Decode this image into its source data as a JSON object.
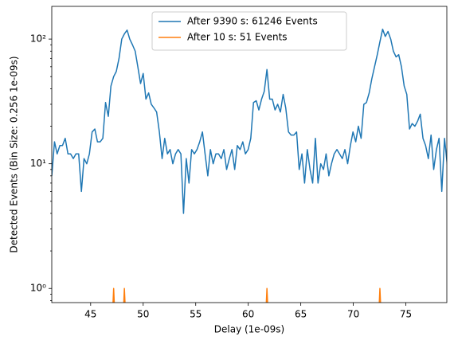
{
  "chart_data": {
    "type": "line",
    "xlabel": "Delay (1e-09s)",
    "ylabel": "Detected Events (Bin Size: 0.256 1e-09s)",
    "log_y": true,
    "legend": "upper center",
    "xlim": [
      41.3,
      78.9
    ],
    "ylim": [
      0.77,
      183
    ],
    "xticks": [
      45,
      50,
      55,
      60,
      65,
      70,
      75
    ],
    "yticks": [
      {
        "value": 1,
        "label": "10⁰"
      },
      {
        "value": 10,
        "label": "10¹"
      },
      {
        "value": 100,
        "label": "10²"
      }
    ],
    "yminorticks": [
      0.8,
      0.9,
      2,
      3,
      4,
      5,
      6,
      7,
      8,
      9,
      20,
      30,
      40,
      50,
      60,
      70,
      80,
      90
    ],
    "x": [
      41.3,
      41.56,
      41.81,
      42.07,
      42.32,
      42.58,
      42.84,
      43.09,
      43.35,
      43.6,
      43.86,
      44.12,
      44.37,
      44.63,
      44.88,
      45.14,
      45.4,
      45.65,
      45.91,
      46.16,
      46.42,
      46.68,
      46.93,
      47.19,
      47.44,
      47.7,
      47.96,
      48.21,
      48.47,
      48.72,
      48.98,
      49.24,
      49.49,
      49.75,
      50.0,
      50.26,
      50.52,
      50.77,
      51.03,
      51.28,
      51.54,
      51.8,
      52.05,
      52.31,
      52.56,
      52.82,
      53.08,
      53.33,
      53.59,
      53.84,
      54.1,
      54.36,
      54.61,
      54.87,
      55.12,
      55.38,
      55.64,
      55.89,
      56.15,
      56.4,
      56.66,
      56.92,
      57.17,
      57.43,
      57.68,
      57.94,
      58.2,
      58.45,
      58.71,
      58.96,
      59.22,
      59.48,
      59.73,
      59.99,
      60.24,
      60.5,
      60.76,
      61.01,
      61.27,
      61.52,
      61.78,
      62.04,
      62.29,
      62.55,
      62.8,
      63.06,
      63.32,
      63.57,
      63.83,
      64.08,
      64.34,
      64.6,
      64.85,
      65.11,
      65.36,
      65.62,
      65.88,
      66.13,
      66.39,
      66.64,
      66.9,
      67.16,
      67.41,
      67.67,
      67.92,
      68.18,
      68.44,
      68.69,
      68.95,
      69.2,
      69.46,
      69.72,
      69.97,
      70.23,
      70.48,
      70.74,
      71.0,
      71.25,
      71.51,
      71.76,
      72.02,
      72.28,
      72.53,
      72.79,
      73.04,
      73.3,
      73.56,
      73.81,
      74.07,
      74.32,
      74.58,
      74.84,
      75.09,
      75.35,
      75.6,
      75.86,
      76.12,
      76.37,
      76.63,
      76.88,
      77.14,
      77.4,
      77.65,
      77.91,
      78.16,
      78.42,
      78.68,
      78.93,
      79.19
    ],
    "series": [
      {
        "name": "After 9390 s: 61246 Events",
        "color": "#1f77b4",
        "values": [
          8,
          15,
          12,
          14,
          14,
          16,
          12,
          12,
          11,
          12,
          12,
          6,
          11,
          10,
          12,
          18,
          19,
          15,
          15,
          16,
          31,
          24,
          42,
          50,
          55,
          70,
          100,
          110,
          118,
          100,
          90,
          80,
          60,
          44,
          53,
          33,
          37,
          30,
          28,
          26,
          18,
          11,
          16,
          12,
          13,
          10,
          12,
          13,
          12,
          4,
          11,
          7,
          13,
          12,
          13,
          15,
          18,
          12,
          8,
          13,
          10,
          12,
          12,
          11,
          13,
          9,
          11,
          13,
          9,
          14,
          13,
          15,
          12,
          13,
          16,
          31,
          32,
          27,
          33,
          38,
          57,
          33,
          33,
          27,
          30,
          26,
          36,
          28,
          18,
          17,
          17,
          18,
          9,
          12,
          7,
          13,
          9,
          7,
          16,
          7,
          10,
          9,
          12,
          8,
          10,
          12,
          13,
          12,
          11,
          13,
          10,
          14,
          18,
          15,
          20,
          16,
          30,
          31,
          37,
          48,
          60,
          75,
          95,
          120,
          105,
          115,
          100,
          80,
          72,
          75,
          60,
          42,
          36,
          19,
          21,
          20,
          22,
          25,
          16,
          14,
          11,
          17,
          9,
          13,
          16,
          6,
          16,
          10,
          8
        ]
      },
      {
        "name": "After 10 s: 51 Events",
        "color": "#ff7f0e",
        "values": [
          0,
          0,
          0,
          0,
          0,
          0,
          0,
          0,
          0,
          0,
          0,
          0,
          0,
          0,
          0,
          0,
          0,
          0,
          0,
          0,
          0,
          0,
          0,
          1,
          0,
          0,
          0,
          1,
          0,
          0,
          0,
          0,
          0,
          0,
          0,
          0,
          0,
          0,
          0,
          0,
          0,
          0,
          0,
          0,
          0,
          0,
          0,
          0,
          0,
          0,
          0,
          0,
          0,
          0,
          0,
          0,
          0,
          0,
          0,
          0,
          0,
          0,
          0,
          0,
          0,
          0,
          0,
          0,
          0,
          0,
          0,
          0,
          0,
          0,
          0,
          0,
          0,
          0,
          0,
          0,
          1,
          0,
          0,
          0,
          0,
          0,
          0,
          0,
          0,
          0,
          0,
          0,
          0,
          0,
          0,
          0,
          0,
          0,
          0,
          0,
          0,
          0,
          0,
          0,
          0,
          0,
          0,
          0,
          0,
          0,
          0,
          0,
          0,
          0,
          0,
          0,
          0,
          0,
          0,
          0,
          0,
          0,
          1,
          0,
          0,
          0,
          0,
          0,
          0,
          0,
          0,
          0,
          0,
          0,
          0,
          0,
          0,
          0,
          0,
          0,
          0,
          0,
          0,
          0,
          0,
          0,
          0,
          0,
          0
        ]
      }
    ]
  }
}
